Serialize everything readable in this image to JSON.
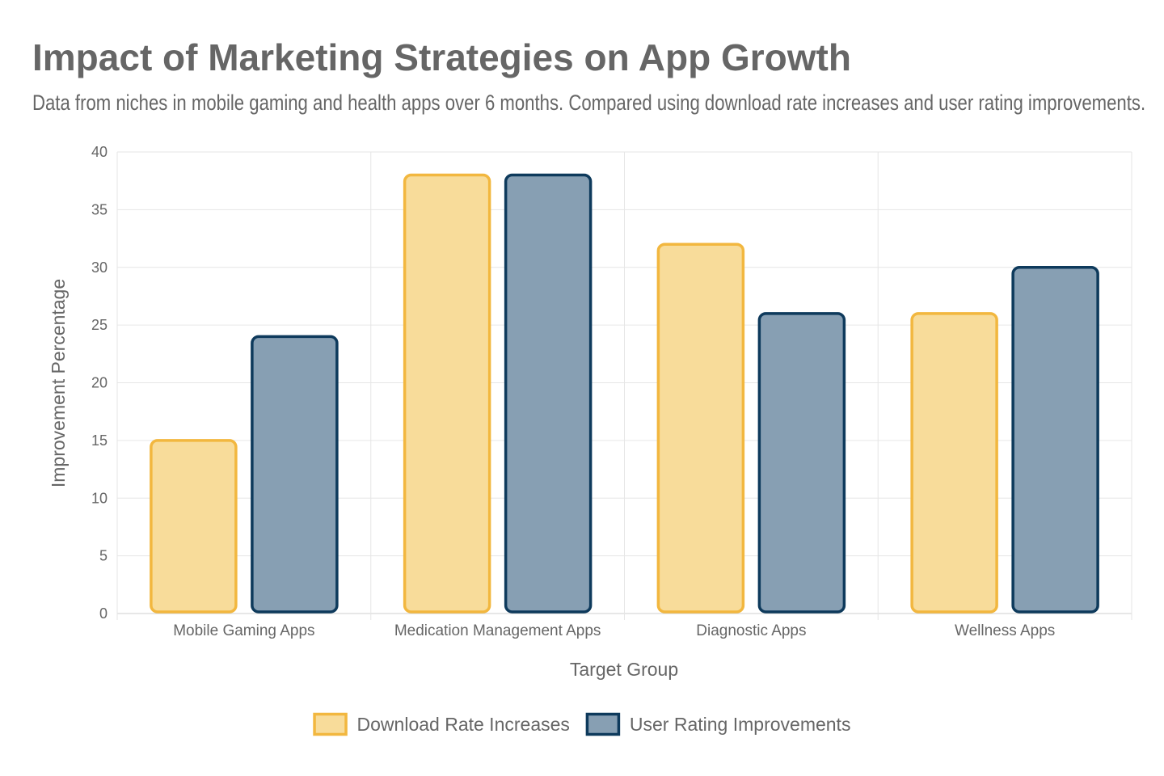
{
  "title": "Impact of Marketing Strategies on App Growth",
  "subtitle": "Data from niches in mobile gaming and health apps over 6 months. Compared using download rate increases and user rating improvements.",
  "chart_data": {
    "type": "bar",
    "title": "Impact of Marketing Strategies on App Growth",
    "subtitle": "Data from niches in mobile gaming and health apps over 6 months. Compared using download rate increases and user rating improvements.",
    "xlabel": "Target Group",
    "ylabel": "Improvement Percentage",
    "categories": [
      "Mobile Gaming Apps",
      "Medication Management Apps",
      "Diagnostic Apps",
      "Wellness Apps"
    ],
    "ylim": [
      0,
      40
    ],
    "yticks": [
      0,
      5,
      10,
      15,
      20,
      25,
      30,
      35,
      40
    ],
    "grid": true,
    "legend_position": "bottom",
    "series": [
      {
        "name": "Download Rate Increases",
        "values": [
          15,
          38,
          32,
          26
        ],
        "fill": "#f8dc9a",
        "stroke": "#f2b73f"
      },
      {
        "name": "User Rating Improvements",
        "values": [
          24,
          38,
          26,
          30
        ],
        "fill": "#879fb3",
        "stroke": "#0e3a5c"
      }
    ]
  }
}
